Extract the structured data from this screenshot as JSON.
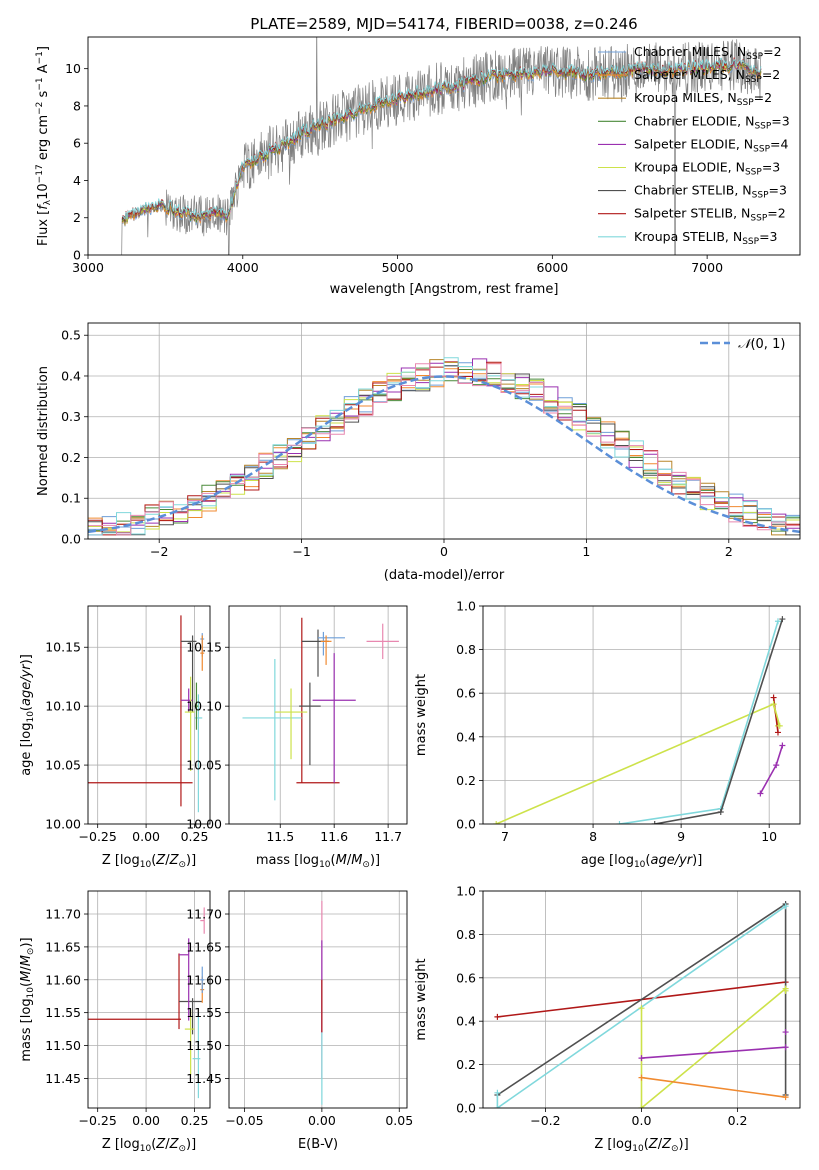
{
  "colors": {
    "Chabrier MILES": "#6f9fd8",
    "Salpeter MILES": "#f08a30",
    "Kroupa MILES": "#b8862b",
    "Chabrier ELODIE": "#4a8a3a",
    "Salpeter ELODIE": "#9a30b0",
    "Kroupa ELODIE": "#cde24a",
    "Chabrier STELIB": "#505050",
    "Salpeter STELIB": "#b01818",
    "Kroupa STELIB": "#80d8dc",
    "extra_pink": "#e888b0",
    "data_gray": "#808080",
    "normal_blue": "#5b8fd8",
    "grid": "#b0b0b0"
  },
  "chart_data": [
    {
      "id": "spectrum",
      "type": "line",
      "title": "PLATE=2589, MJD=54174, FIBERID=0038, z=0.246",
      "xlabel": "wavelength [Angstrom, rest frame]",
      "ylabel": "Flux [f_λ10^-17 erg cm^-2 s^-1 A^-1]",
      "xlim": [
        3000,
        7600
      ],
      "ylim": [
        0,
        11.7
      ],
      "xticks": [
        "3000",
        "4000",
        "5000",
        "6000",
        "7000"
      ],
      "yticks": [
        "0",
        "2",
        "4",
        "6",
        "8",
        "10"
      ],
      "grid": false,
      "legend_position": "lower-right",
      "legend": [
        "Chabrier MILES, N_SSP=2",
        "Salpeter MILES, N_SSP=2",
        "Kroupa MILES, N_SSP=2",
        "Chabrier ELODIE, N_SSP=3",
        "Salpeter ELODIE, N_SSP=4",
        "Kroupa ELODIE, N_SSP=3",
        "Chabrier STELIB, N_SSP=3",
        "Salpeter STELIB, N_SSP=2",
        "Kroupa STELIB, N_SSP=3"
      ],
      "continuum": {
        "x": [
          3220,
          3300,
          3400,
          3500,
          3600,
          3700,
          3800,
          3900,
          4000,
          4200,
          4400,
          4600,
          4800,
          5000,
          5200,
          5400,
          5600,
          5800,
          6000,
          6200,
          6400,
          6600,
          6800,
          7000,
          7200,
          7350
        ],
        "y": [
          1.8,
          2.3,
          2.5,
          2.6,
          2.3,
          2.1,
          2.2,
          2.0,
          4.8,
          5.6,
          6.6,
          7.3,
          7.9,
          8.4,
          8.8,
          9.1,
          9.6,
          9.7,
          9.9,
          9.7,
          9.8,
          10.0,
          9.9,
          10.1,
          10.2,
          9.8
        ]
      }
    },
    {
      "id": "residuals",
      "type": "step",
      "xlabel": "(data-model)/error",
      "ylabel": "Normed distribution",
      "xlim": [
        -2.5,
        2.5
      ],
      "ylim": [
        0,
        0.53
      ],
      "xticks": [
        "−2",
        "−1",
        "0",
        "1",
        "2"
      ],
      "yticks": [
        "0.0",
        "0.1",
        "0.2",
        "0.3",
        "0.4",
        "0.5"
      ],
      "grid": true,
      "legend_position": "upper-right",
      "legend": [
        "N(0,1)"
      ],
      "bin_start": -2.5,
      "bin_width": 0.1
    },
    {
      "id": "age_vs_Z",
      "type": "errorbar",
      "xlabel": "Z [log10(Z/Z⊙)]",
      "ylabel": "age [log10(age/yr)]",
      "xlim": [
        -0.3,
        0.33
      ],
      "ylim": [
        10.0,
        10.185
      ],
      "xticks": [
        "−0.25",
        "0.00",
        "0.25"
      ],
      "yticks": [
        "10.00",
        "10.05",
        "10.10",
        "10.15"
      ],
      "grid": true
    },
    {
      "id": "age_vs_mass",
      "type": "errorbar",
      "xlabel": "mass [log10(M/M⊙)]",
      "ylabel": "",
      "xlim": [
        11.405,
        11.735
      ],
      "ylim": [
        10.0,
        10.185
      ],
      "xticks": [
        "11.5",
        "11.6",
        "11.7"
      ],
      "yticks": [
        "10.00",
        "10.05",
        "10.10",
        "10.15"
      ],
      "grid": true
    },
    {
      "id": "weight_vs_age",
      "type": "line",
      "xlabel": "age [log10(age/yr)]",
      "ylabel": "mass weight",
      "xlim": [
        6.75,
        10.35
      ],
      "ylim": [
        0,
        1.0
      ],
      "xticks": [
        "7",
        "8",
        "9",
        "10"
      ],
      "yticks": [
        "0.0",
        "0.2",
        "0.4",
        "0.6",
        "0.8",
        "1.0"
      ],
      "grid": true
    },
    {
      "id": "mass_vs_Z",
      "type": "errorbar",
      "xlabel": "Z [log10(Z/Z⊙)]",
      "ylabel": "mass [log10(M/M⊙)]",
      "xlim": [
        -0.3,
        0.33
      ],
      "ylim": [
        11.405,
        11.735
      ],
      "xticks": [
        "−0.25",
        "0.00",
        "0.25"
      ],
      "yticks": [
        "11.45",
        "11.50",
        "11.55",
        "11.60",
        "11.65",
        "11.70"
      ],
      "grid": true
    },
    {
      "id": "mass_vs_ebv",
      "type": "errorbar",
      "xlabel": "E(B-V)",
      "ylabel": "",
      "xlim": [
        -0.06,
        0.055
      ],
      "ylim": [
        11.405,
        11.735
      ],
      "xticks": [
        "−0.05",
        "0.00",
        "0.05"
      ],
      "yticks": [
        "11.45",
        "11.50",
        "11.55",
        "11.60",
        "11.65",
        "11.70"
      ],
      "grid": true
    },
    {
      "id": "weight_vs_Z",
      "type": "line",
      "xlabel": "Z [log10(Z/Z⊙)]",
      "ylabel": "mass weight",
      "xlim": [
        -0.33,
        0.33
      ],
      "ylim": [
        0,
        1.0
      ],
      "xticks": [
        "−0.2",
        "0.0",
        "0.2"
      ],
      "yticks": [
        "0.0",
        "0.2",
        "0.4",
        "0.6",
        "0.8",
        "1.0"
      ],
      "grid": true
    }
  ]
}
